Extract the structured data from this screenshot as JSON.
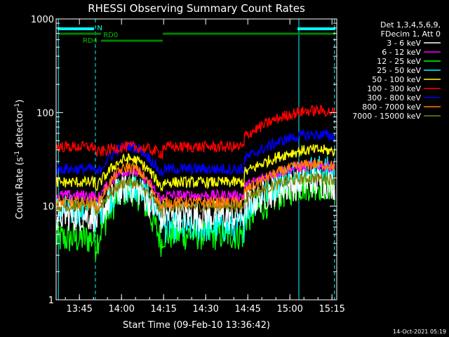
{
  "chart_data": {
    "type": "line",
    "title": "RHESSI Observing Summary Count Rates",
    "xlabel": "Start Time (09-Feb-10 13:36:42)",
    "ylabel_main": "Count Rate (s",
    "ylabel_sup1": "-1",
    "ylabel_mid": " detector",
    "ylabel_sup2": "-1",
    "ylabel_end": ")",
    "yscale": "log",
    "ylim": [
      1,
      1000
    ],
    "xlim_min": [
      0,
      100
    ],
    "x_ticks": [
      {
        "label": "13:45",
        "min": 8.3
      },
      {
        "label": "14:00",
        "min": 23.3
      },
      {
        "label": "14:15",
        "min": 38.3
      },
      {
        "label": "14:30",
        "min": 53.3
      },
      {
        "label": "14:45",
        "min": 68.3
      },
      {
        "label": "15:00",
        "min": 83.3
      },
      {
        "label": "15:15",
        "min": 98.3
      }
    ],
    "y_ticks": [
      {
        "label": "1",
        "v": 1
      },
      {
        "label": "10",
        "v": 10
      },
      {
        "label": "100",
        "v": 100
      },
      {
        "label": "1000",
        "v": 1000
      }
    ],
    "legend_header": [
      "Det 1,3,4,5,6,9,",
      "FDecim 1, Att 0"
    ],
    "series": [
      {
        "name": "3 - 6 keV",
        "color": "#ffffff",
        "flat": 8,
        "day": 8,
        "peak1": 16,
        "peak2": 18
      },
      {
        "name": "6 - 12 keV",
        "color": "#ff00ff",
        "flat": 13,
        "day": 13,
        "peak1": 24,
        "peak2": 27
      },
      {
        "name": "12 - 25 keV",
        "color": "#00ff00",
        "flat": 4.5,
        "day": 5,
        "peak1": 15,
        "peak2": 17
      },
      {
        "name": "25 - 50 keV",
        "color": "#00ffff",
        "flat": 9,
        "day": 6,
        "peak1": 16,
        "peak2": 24
      },
      {
        "name": "50 - 100 keV",
        "color": "#ffff00",
        "flat": 18,
        "day": 18,
        "peak1": 32,
        "peak2": 40
      },
      {
        "name": "100 - 300 keV",
        "color": "#ff0000",
        "flat": 43,
        "day": 43,
        "peak1": 43,
        "peak2": 105
      },
      {
        "name": "300 - 800 keV",
        "color": "#0000ff",
        "flat": 25,
        "day": 25,
        "peak1": 44,
        "peak2": 58
      },
      {
        "name": "800 - 7000 keV",
        "color": "#ff8000",
        "flat": 11,
        "day": 11,
        "peak1": 26,
        "peak2": 28
      },
      {
        "name": "7000 - 15000 keV",
        "color": "#808000",
        "flat": 10,
        "day": 10,
        "peak1": 18,
        "peak2": 20
      }
    ],
    "annotations": {
      "saa_label": "N",
      "rd0_label": "RD0",
      "rd4_label": "RD4",
      "night_boundaries_min": [
        0.8,
        14,
        86.5,
        99.2
      ],
      "night_bars_min": [
        [
          0.5,
          13.5
        ],
        [
          86,
          99.5
        ]
      ],
      "rd0_bars_min": [
        [
          0.5,
          16
        ],
        [
          38,
          99.5
        ]
      ],
      "rd4_bar_min": [
        16,
        38
      ],
      "attenuator_lines_min": [
        14,
        99.2
      ]
    },
    "timestamp": "14-Oct-2021 05:19"
  }
}
